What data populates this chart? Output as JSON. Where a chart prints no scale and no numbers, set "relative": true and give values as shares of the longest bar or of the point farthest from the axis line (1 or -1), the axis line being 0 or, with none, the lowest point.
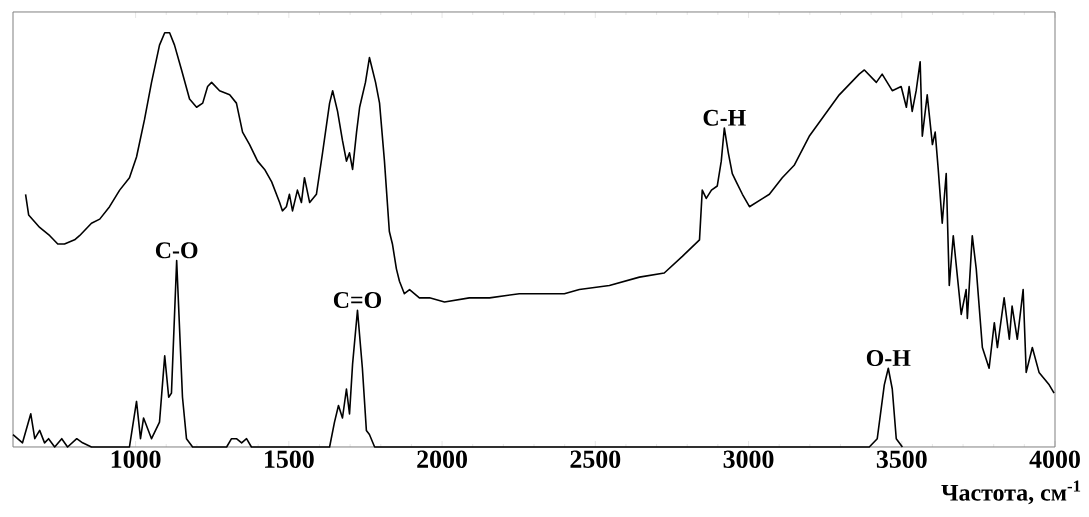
{
  "chart_data": {
    "type": "line",
    "relative": true,
    "xlabel": "Частота, см$^{-1}$",
    "xlim": [
      600,
      4000
    ],
    "xticks": [
      1000,
      1500,
      2000,
      2500,
      3000,
      3500,
      4000
    ],
    "series": [
      {
        "color": "#000000",
        "x": [
          641,
          651,
          687,
          720,
          746,
          768,
          801,
          817,
          856,
          883,
          915,
          948,
          980,
          1003,
          1029,
          1052,
          1078,
          1095,
          1111,
          1127,
          1150,
          1176,
          1199,
          1219,
          1235,
          1248,
          1274,
          1307,
          1329,
          1349,
          1372,
          1398,
          1421,
          1444,
          1470,
          1479,
          1492,
          1502,
          1512,
          1528,
          1541,
          1551,
          1568,
          1590,
          1610,
          1633,
          1643,
          1659,
          1675,
          1688,
          1698,
          1708,
          1721,
          1731,
          1750,
          1763,
          1783,
          1796,
          1812,
          1828,
          1838,
          1851,
          1861,
          1877,
          1894,
          1926,
          1959,
          2008,
          2089,
          2155,
          2252,
          2350,
          2399,
          2448,
          2546,
          2644,
          2725,
          2784,
          2840,
          2849,
          2862,
          2879,
          2898,
          2911,
          2921,
          2934,
          2947,
          2960,
          2980,
          3003,
          3068,
          3110,
          3149,
          3198,
          3247,
          3296,
          3361,
          3378,
          3417,
          3436,
          3469,
          3498,
          3515,
          3524,
          3534,
          3547,
          3560,
          3567,
          3583,
          3600,
          3609,
          3619,
          3632,
          3645,
          3655,
          3668,
          3694,
          3710,
          3714,
          3730,
          3743,
          3763,
          3785,
          3802,
          3812,
          3834,
          3851,
          3860,
          3877,
          3896,
          3906,
          3926,
          3948,
          3981,
          3997
        ],
        "values": [
          0.61,
          0.56,
          0.53,
          0.51,
          0.49,
          0.49,
          0.5,
          0.51,
          0.54,
          0.55,
          0.58,
          0.62,
          0.65,
          0.7,
          0.79,
          0.88,
          0.97,
          1,
          1,
          0.97,
          0.91,
          0.84,
          0.82,
          0.83,
          0.87,
          0.88,
          0.86,
          0.85,
          0.83,
          0.76,
          0.73,
          0.69,
          0.67,
          0.64,
          0.59,
          0.57,
          0.58,
          0.61,
          0.57,
          0.62,
          0.59,
          0.65,
          0.59,
          0.61,
          0.71,
          0.83,
          0.86,
          0.81,
          0.74,
          0.69,
          0.71,
          0.67,
          0.76,
          0.82,
          0.88,
          0.94,
          0.88,
          0.83,
          0.69,
          0.52,
          0.49,
          0.43,
          0.4,
          0.37,
          0.38,
          0.36,
          0.36,
          0.35,
          0.36,
          0.36,
          0.37,
          0.37,
          0.37,
          0.38,
          0.39,
          0.41,
          0.42,
          0.46,
          0.5,
          0.62,
          0.6,
          0.62,
          0.63,
          0.69,
          0.77,
          0.71,
          0.66,
          0.64,
          0.61,
          0.58,
          0.61,
          0.65,
          0.68,
          0.75,
          0.8,
          0.85,
          0.9,
          0.91,
          0.88,
          0.9,
          0.86,
          0.87,
          0.82,
          0.87,
          0.81,
          0.86,
          0.93,
          0.75,
          0.85,
          0.73,
          0.76,
          0.67,
          0.54,
          0.66,
          0.39,
          0.51,
          0.32,
          0.38,
          0.31,
          0.51,
          0.43,
          0.24,
          0.19,
          0.3,
          0.24,
          0.36,
          0.26,
          0.34,
          0.26,
          0.38,
          0.18,
          0.24,
          0.18,
          0.15,
          0.13
        ]
      },
      {
        "color": "#000000",
        "x": [
          600,
          631,
          658,
          671,
          687,
          703,
          716,
          736,
          759,
          778,
          808,
          827,
          856,
          980,
          1003,
          1016,
          1026,
          1052,
          1078,
          1095,
          1108,
          1117,
          1134,
          1153,
          1166,
          1186,
          1297,
          1313,
          1329,
          1346,
          1362,
          1378,
          1633,
          1649,
          1662,
          1675,
          1688,
          1698,
          1708,
          1724,
          1740,
          1753,
          1763,
          1780,
          3394,
          3420,
          3443,
          3456,
          3469,
          3482,
          3502
        ],
        "values": [
          0.03,
          0.01,
          0.08,
          0.02,
          0.04,
          0.01,
          0.02,
          0,
          0.02,
          0,
          0.02,
          0.01,
          0,
          0,
          0.11,
          0.02,
          0.07,
          0.02,
          0.06,
          0.22,
          0.12,
          0.13,
          0.45,
          0.12,
          0.02,
          0,
          0,
          0.02,
          0.02,
          0.01,
          0.02,
          0,
          0,
          0.06,
          0.1,
          0.07,
          0.14,
          0.08,
          0.2,
          0.33,
          0.19,
          0.04,
          0.03,
          0,
          0,
          0.02,
          0.15,
          0.19,
          0.14,
          0.02,
          0
        ]
      }
    ],
    "annotations": [
      {
        "text": "C-O",
        "x": 1134,
        "y": 0.45
      },
      {
        "text": "C=O",
        "x": 1724,
        "y": 0.33
      },
      {
        "text": "C-H",
        "x": 2921,
        "y": 0.77
      },
      {
        "text": "O-H",
        "x": 3456,
        "y": 0.19
      }
    ]
  }
}
